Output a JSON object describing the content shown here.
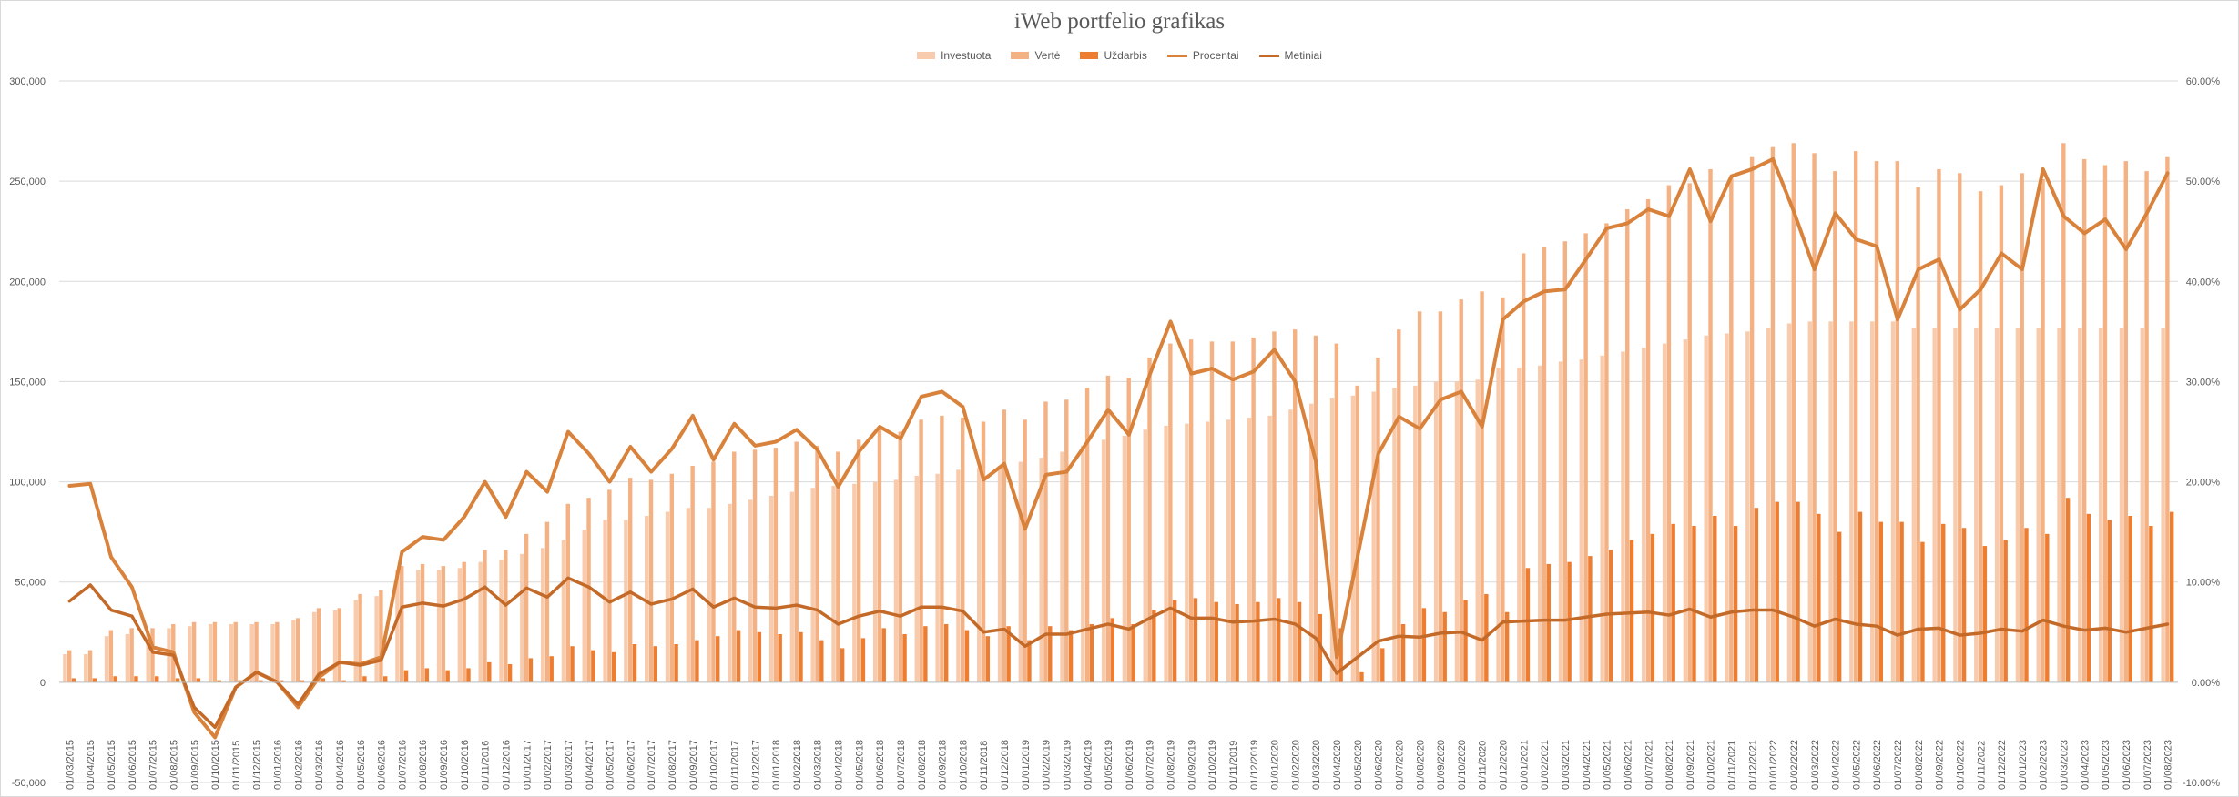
{
  "chart_data": {
    "type": "bar",
    "title": "iWeb portfelio grafikas",
    "legend": {
      "placement": "top",
      "entries": [
        "Investuota",
        "Vertė",
        "Uždarbis",
        "Procentai",
        "Metiniai"
      ]
    },
    "grid": true,
    "y_left": {
      "min": -50000,
      "max": 300000,
      "step": 50000,
      "tick_labels": [
        "-50,000",
        "0",
        "50,000",
        "100,000",
        "150,000",
        "200,000",
        "250,000",
        "300,000"
      ]
    },
    "y_right": {
      "min": -0.1,
      "max": 0.6,
      "step": 0.1,
      "tick_labels": [
        "-10.00%",
        "0.00%",
        "10.00%",
        "20.00%",
        "30.00%",
        "40.00%",
        "50.00%",
        "60.00%"
      ]
    },
    "colors": {
      "investuota": "#f8cbad",
      "verte": "#f4b183",
      "uzdarbis": "#ed7d31",
      "procentai": "#d9823b",
      "metiniai": "#c46a29",
      "grid": "#d9d9d9",
      "text": "#595959"
    },
    "categories": [
      "01/03/2015",
      "01/04/2015",
      "01/05/2015",
      "01/06/2015",
      "01/07/2015",
      "01/08/2015",
      "01/09/2015",
      "01/10/2015",
      "01/11/2015",
      "01/12/2015",
      "01/01/2016",
      "01/02/2016",
      "01/03/2016",
      "01/04/2016",
      "01/05/2016",
      "01/06/2016",
      "01/07/2016",
      "01/08/2016",
      "01/09/2016",
      "01/10/2016",
      "01/11/2016",
      "01/12/2016",
      "01/01/2017",
      "01/02/2017",
      "01/03/2017",
      "01/04/2017",
      "01/05/2017",
      "01/06/2017",
      "01/07/2017",
      "01/08/2017",
      "01/09/2017",
      "01/10/2017",
      "01/11/2017",
      "01/12/2017",
      "01/01/2018",
      "01/02/2018",
      "01/03/2018",
      "01/04/2018",
      "01/05/2018",
      "01/06/2018",
      "01/07/2018",
      "01/08/2018",
      "01/09/2018",
      "01/10/2018",
      "01/11/2018",
      "01/12/2018",
      "01/01/2019",
      "01/02/2019",
      "01/03/2019",
      "01/04/2019",
      "01/05/2019",
      "01/06/2019",
      "01/07/2019",
      "01/08/2019",
      "01/09/2019",
      "01/10/2019",
      "01/11/2019",
      "01/12/2019",
      "01/01/2020",
      "01/02/2020",
      "01/03/2020",
      "01/04/2020",
      "01/05/2020",
      "01/06/2020",
      "01/07/2020",
      "01/08/2020",
      "01/09/2020",
      "01/10/2020",
      "01/11/2020",
      "01/12/2020",
      "01/01/2021",
      "01/02/2021",
      "01/03/2021",
      "01/04/2021",
      "01/05/2021",
      "01/06/2021",
      "01/07/2021",
      "01/08/2021",
      "01/09/2021",
      "01/10/2021",
      "01/11/2021",
      "01/12/2021",
      "01/01/2022",
      "01/02/2022",
      "01/03/2022",
      "01/04/2022",
      "01/05/2022",
      "01/06/2022",
      "01/07/2022",
      "01/08/2022",
      "01/09/2022",
      "01/10/2022",
      "01/11/2022",
      "01/12/2022",
      "01/01/2023",
      "01/02/2023",
      "01/03/2023",
      "01/04/2023",
      "01/05/2023",
      "01/06/2023",
      "01/07/2023",
      "01/08/2023"
    ],
    "series": [
      {
        "name": "Investuota",
        "type": "bar",
        "axis": "left",
        "values": [
          14000,
          14000,
          23000,
          24000,
          24000,
          27000,
          28000,
          29000,
          29000,
          29000,
          29000,
          31000,
          35000,
          36000,
          41000,
          43000,
          56000,
          56000,
          56000,
          57000,
          60000,
          61000,
          64000,
          67000,
          71000,
          76000,
          81000,
          81000,
          83000,
          85000,
          87000,
          87000,
          89000,
          91000,
          93000,
          95000,
          97000,
          98000,
          99000,
          100000,
          101000,
          103000,
          104000,
          106000,
          107000,
          108000,
          110000,
          112000,
          115000,
          118000,
          121000,
          123000,
          126000,
          128000,
          129000,
          130000,
          131000,
          132000,
          133000,
          136000,
          139000,
          142000,
          143000,
          145000,
          147000,
          148000,
          150000,
          150000,
          151000,
          157000,
          157000,
          158000,
          160000,
          161000,
          163000,
          165000,
          167000,
          169000,
          171000,
          173000,
          174000,
          175000,
          177000,
          179000,
          180000,
          180000,
          180000,
          180000,
          180000,
          177000,
          177000,
          177000,
          177000,
          177000,
          177000,
          177000,
          177000,
          177000,
          177000,
          177000,
          177000,
          177000
        ]
      },
      {
        "name": "Vertė",
        "type": "bar",
        "axis": "left",
        "values": [
          16000,
          16000,
          26000,
          27000,
          27000,
          29000,
          30000,
          30000,
          30000,
          30000,
          30000,
          32000,
          37000,
          37000,
          44000,
          46000,
          58000,
          59000,
          58000,
          60000,
          66000,
          66000,
          74000,
          80000,
          89000,
          92000,
          96000,
          102000,
          101000,
          104000,
          108000,
          110000,
          115000,
          116000,
          117000,
          120000,
          118000,
          115000,
          121000,
          127000,
          125000,
          131000,
          133000,
          132000,
          130000,
          136000,
          131000,
          140000,
          141000,
          147000,
          153000,
          152000,
          162000,
          169000,
          171000,
          170000,
          170000,
          172000,
          175000,
          176000,
          173000,
          169000,
          148000,
          162000,
          176000,
          185000,
          185000,
          191000,
          195000,
          192000,
          214000,
          217000,
          220000,
          224000,
          229000,
          236000,
          241000,
          248000,
          249000,
          256000,
          252000,
          262000,
          267000,
          269000,
          264000,
          255000,
          265000,
          260000,
          260000,
          247000,
          256000,
          254000,
          245000,
          248000,
          254000,
          251000,
          269000,
          261000,
          258000,
          260000,
          255000,
          262000
        ]
      },
      {
        "name": "Uždarbis",
        "type": "bar",
        "axis": "left",
        "values": [
          2000,
          2000,
          3000,
          3000,
          3000,
          2000,
          2000,
          1000,
          1000,
          1000,
          1000,
          1000,
          2000,
          1000,
          3000,
          3000,
          6000,
          7000,
          6000,
          7000,
          10000,
          9000,
          12000,
          13000,
          18000,
          16000,
          15000,
          19000,
          18000,
          19000,
          21000,
          23000,
          26000,
          25000,
          24000,
          25000,
          21000,
          17000,
          22000,
          27000,
          24000,
          28000,
          29000,
          26000,
          23000,
          28000,
          21000,
          28000,
          26000,
          29000,
          32000,
          29000,
          36000,
          41000,
          42000,
          40000,
          39000,
          40000,
          42000,
          40000,
          34000,
          27000,
          5000,
          17000,
          29000,
          37000,
          35000,
          41000,
          44000,
          35000,
          57000,
          59000,
          60000,
          63000,
          66000,
          71000,
          74000,
          79000,
          78000,
          83000,
          78000,
          87000,
          90000,
          90000,
          84000,
          75000,
          85000,
          80000,
          80000,
          70000,
          79000,
          77000,
          68000,
          71000,
          77000,
          74000,
          92000,
          84000,
          81000,
          83000,
          78000,
          85000
        ]
      },
      {
        "name": "Procentai",
        "type": "line",
        "axis": "right",
        "values": [
          0.196,
          0.198,
          0.125,
          0.095,
          0.035,
          0.03,
          -0.03,
          -0.055,
          -0.005,
          0.01,
          0.0,
          -0.025,
          0.005,
          0.02,
          0.018,
          0.025,
          0.13,
          0.145,
          0.142,
          0.165,
          0.2,
          0.165,
          0.21,
          0.19,
          0.25,
          0.228,
          0.2,
          0.235,
          0.21,
          0.233,
          0.266,
          0.222,
          0.258,
          0.236,
          0.24,
          0.252,
          0.232,
          0.195,
          0.23,
          0.255,
          0.243,
          0.285,
          0.29,
          0.275,
          0.202,
          0.218,
          0.153,
          0.207,
          0.21,
          0.24,
          0.272,
          0.247,
          0.307,
          0.36,
          0.308,
          0.313,
          0.302,
          0.31,
          0.332,
          0.3,
          0.22,
          0.025,
          0.125,
          0.228,
          0.265,
          0.253,
          0.282,
          0.29,
          0.255,
          0.362,
          0.38,
          0.39,
          0.392,
          0.422,
          0.453,
          0.458,
          0.472,
          0.465,
          0.512,
          0.46,
          0.505,
          0.512,
          0.522,
          0.47,
          0.412,
          0.468,
          0.442,
          0.435,
          0.362,
          0.412,
          0.422,
          0.372,
          0.392,
          0.428,
          0.412,
          0.512,
          0.465,
          0.448,
          0.462,
          0.432,
          0.468,
          0.508
        ]
      },
      {
        "name": "Metiniai",
        "type": "line",
        "axis": "right",
        "values": [
          0.081,
          0.097,
          0.072,
          0.066,
          0.03,
          0.027,
          -0.025,
          -0.045,
          -0.005,
          0.01,
          0.0,
          -0.022,
          0.008,
          0.02,
          0.017,
          0.022,
          0.075,
          0.079,
          0.076,
          0.083,
          0.095,
          0.077,
          0.094,
          0.085,
          0.104,
          0.095,
          0.08,
          0.09,
          0.078,
          0.083,
          0.093,
          0.075,
          0.084,
          0.075,
          0.074,
          0.077,
          0.072,
          0.058,
          0.066,
          0.071,
          0.066,
          0.075,
          0.075,
          0.071,
          0.05,
          0.053,
          0.036,
          0.048,
          0.048,
          0.053,
          0.058,
          0.053,
          0.064,
          0.074,
          0.064,
          0.064,
          0.06,
          0.061,
          0.063,
          0.058,
          0.044,
          0.009,
          0.025,
          0.041,
          0.046,
          0.045,
          0.049,
          0.05,
          0.042,
          0.06,
          0.061,
          0.062,
          0.062,
          0.065,
          0.068,
          0.069,
          0.07,
          0.067,
          0.073,
          0.065,
          0.07,
          0.072,
          0.072,
          0.065,
          0.056,
          0.063,
          0.058,
          0.056,
          0.047,
          0.053,
          0.054,
          0.047,
          0.049,
          0.053,
          0.051,
          0.062,
          0.056,
          0.052,
          0.054,
          0.05,
          0.054,
          0.058
        ]
      }
    ]
  }
}
